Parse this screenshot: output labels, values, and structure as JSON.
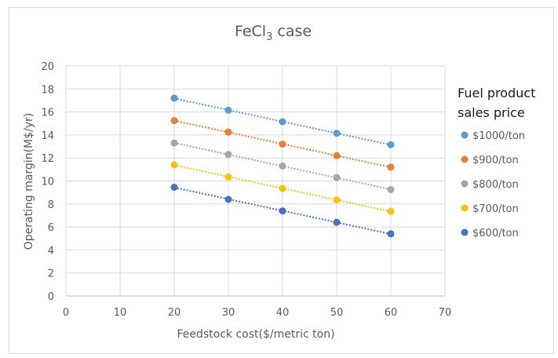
{
  "chart_data": {
    "type": "scatter",
    "title": "FeCl",
    "title_subscript": "3",
    "title_suffix": " case",
    "xlabel": "Feedstock cost($/metric ton)",
    "ylabel": "Operating margin(M$/yr)",
    "xlim": [
      0,
      70
    ],
    "ylim": [
      0,
      20
    ],
    "xticks": [
      0,
      10,
      20,
      30,
      40,
      50,
      60,
      70
    ],
    "yticks": [
      0,
      2,
      4,
      6,
      8,
      10,
      12,
      14,
      16,
      18,
      20
    ],
    "grid": true,
    "trendlines": "dotted linear",
    "legend_title_line1": "Fuel product",
    "legend_title_line2": "sales price",
    "legend_position": "right",
    "x": [
      20,
      30,
      40,
      50,
      60
    ],
    "series": [
      {
        "name": "$1000/ton",
        "color": "#5b9bd5",
        "values": [
          17.2,
          16.15,
          15.15,
          14.15,
          13.15
        ]
      },
      {
        "name": "$900/ton",
        "color": "#ed7d31",
        "values": [
          15.25,
          14.25,
          13.2,
          12.2,
          11.2
        ]
      },
      {
        "name": "$800/ton",
        "color": "#a5a5a5",
        "values": [
          13.3,
          12.3,
          11.3,
          10.3,
          9.25
        ]
      },
      {
        "name": "$700/ton",
        "color": "#ffc000",
        "values": [
          11.4,
          10.35,
          9.35,
          8.35,
          7.35
        ]
      },
      {
        "name": "$600/ton",
        "color": "#4472c4",
        "values": [
          9.45,
          8.4,
          7.4,
          6.4,
          5.4
        ]
      }
    ]
  }
}
